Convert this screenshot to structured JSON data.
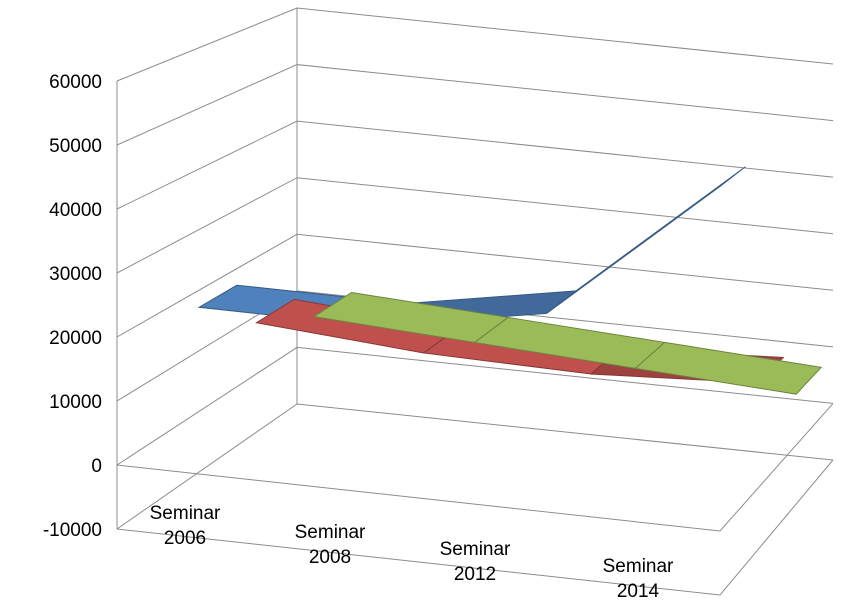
{
  "chart_data": {
    "type": "line",
    "style": "3d",
    "categories": [
      "Seminar 2006",
      "Seminar 2008",
      "Seminar 2012",
      "Seminar 2014"
    ],
    "category_lines": [
      [
        "Seminar",
        "2006"
      ],
      [
        "Seminar",
        "2008"
      ],
      [
        "Seminar",
        "2012"
      ],
      [
        "Seminar",
        "2014"
      ]
    ],
    "ylim": [
      -10000,
      60000
    ],
    "yticks": [
      "60000",
      "50000",
      "40000",
      "30000",
      "20000",
      "10000",
      "0",
      "-10000"
    ],
    "ytick_values": [
      60000,
      50000,
      40000,
      30000,
      20000,
      10000,
      0,
      -10000
    ],
    "grid": true,
    "legend": "none",
    "series": [
      {
        "values": [
          25000,
          25000,
          30000,
          53000
        ],
        "color": "#4f81bd"
      },
      {
        "values": [
          17000,
          15000,
          14500,
          16000
        ],
        "color": "#c0504d"
      },
      {
        "values": [
          12000,
          10500,
          9000,
          7500
        ],
        "color": "#9bbb59"
      }
    ]
  }
}
